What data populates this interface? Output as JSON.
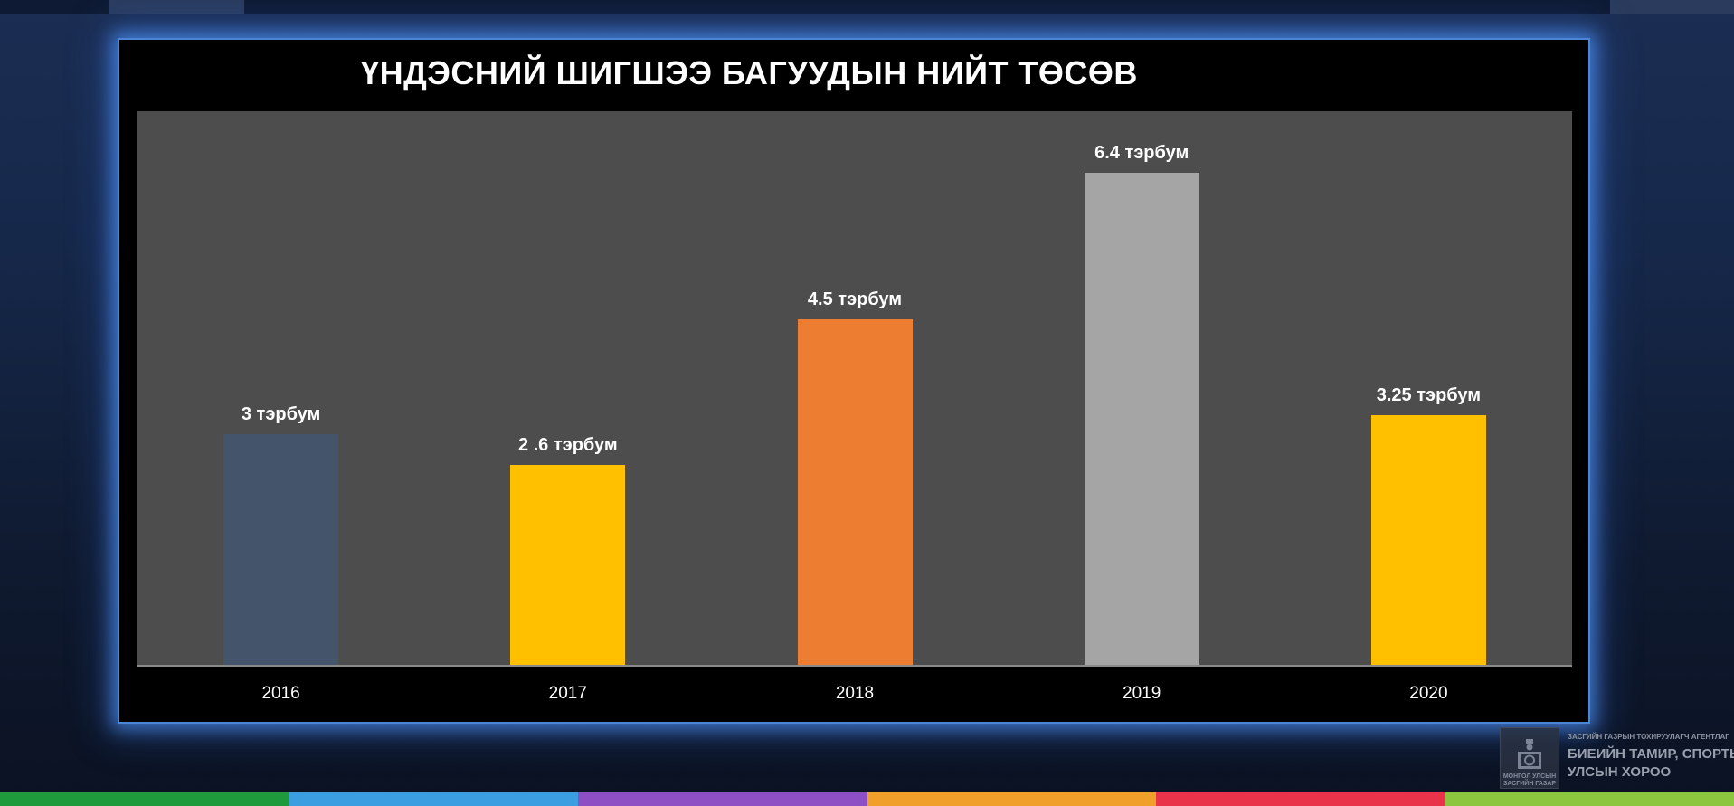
{
  "chart_data": {
    "type": "bar",
    "title": "ҮНДЭСНИЙ ШИГШЭЭ БАГУУДЫН НИЙТ ТӨСӨВ",
    "categories": [
      "2016",
      "2017",
      "2018",
      "2019",
      "2020"
    ],
    "values": [
      3,
      2.6,
      4.5,
      6.4,
      3.25
    ],
    "value_labels": [
      "3 тэрбум",
      "2 .6 тэрбум",
      "4.5 тэрбум",
      "6.4 тэрбум",
      "3.25 тэрбум"
    ],
    "bar_colors": [
      "#44546a",
      "#ffc000",
      "#ed7d31",
      "#a5a5a5",
      "#ffc000"
    ],
    "ylim": [
      0,
      7.2
    ],
    "grid": false,
    "legend": "none",
    "xlabel": "",
    "ylabel": ""
  },
  "branding": {
    "logo_caption": "МОНГОЛ УЛСЫН ЗАСГИЙН ГАЗАР",
    "agency_small": "ЗАСГИЙН ГАЗРЫН ТОХИРУУЛАГЧ АГЕНТЛАГ",
    "agency_line1": "БИЕИЙН ТАМИР, СПОРТЫН",
    "agency_line2": "УЛСЫН ХОРОО"
  },
  "colors": {
    "panel_background": "#000000",
    "plot_background": "#4d4d4d",
    "panel_glow": "#4b86d6",
    "stripes": [
      "#1e9a3c",
      "#3b9ee0",
      "#8e4fc4",
      "#f0a02a",
      "#e8334a",
      "#8cc63f"
    ]
  }
}
